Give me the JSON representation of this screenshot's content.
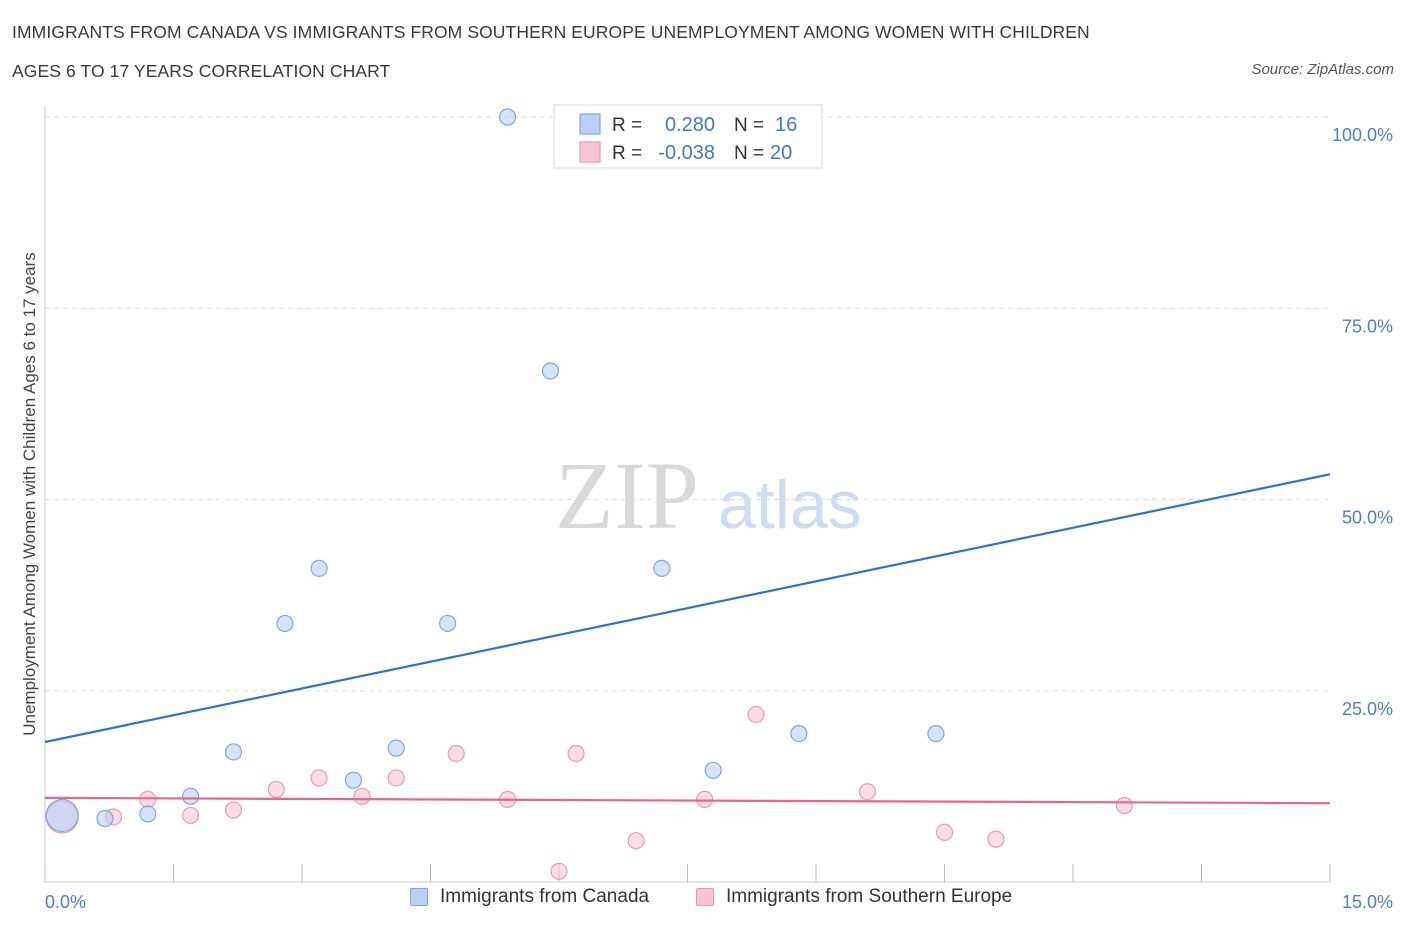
{
  "title_line1": "IMMIGRANTS FROM CANADA VS IMMIGRANTS FROM SOUTHERN EUROPE UNEMPLOYMENT AMONG WOMEN WITH CHILDREN",
  "title_line2": "AGES 6 TO 17 YEARS CORRELATION CHART",
  "source": "Source: ZipAtlas.com",
  "watermark": {
    "zip": "ZIP",
    "atlas": "atlas"
  },
  "colors": {
    "canada_fill": "#b8d0f5",
    "canada_stroke": "#7ea6e0",
    "canada_line": "#2f72d6",
    "europe_fill": "#f8c4d4",
    "europe_stroke": "#eb9ab5",
    "europe_line": "#e8638e",
    "tick_text": "#4a7fcf",
    "grid": "#dddddd"
  },
  "legend": {
    "r_label": "R =",
    "n_label": "N =",
    "canada": {
      "r": "0.280",
      "n": "16"
    },
    "europe": {
      "r": "-0.038",
      "n": "20"
    }
  },
  "bottom_legend": {
    "canada": "Immigrants from Canada",
    "europe": "Immigrants from Southern Europe"
  },
  "chart_data": {
    "type": "scatter",
    "xlabel": "",
    "ylabel": "Unemployment Among Women with Children Ages 6 to 17 years",
    "xlim": [
      0,
      15
    ],
    "ylim": [
      0,
      100
    ],
    "x_tick_labels": [
      "0.0%",
      "15.0%"
    ],
    "y_tick_labels": [
      "25.0%",
      "50.0%",
      "75.0%",
      "100.0%"
    ],
    "y_ticks": [
      25,
      50,
      75,
      100
    ],
    "grid": true,
    "legend_position": "top-center",
    "series": [
      {
        "name": "Immigrants from Canada",
        "points": [
          {
            "x": 0.2,
            "y": 8.7,
            "big": true
          },
          {
            "x": 0.7,
            "y": 8.3
          },
          {
            "x": 1.2,
            "y": 8.9
          },
          {
            "x": 1.7,
            "y": 11.2
          },
          {
            "x": 2.2,
            "y": 17.0
          },
          {
            "x": 2.8,
            "y": 33.8
          },
          {
            "x": 3.2,
            "y": 41.0
          },
          {
            "x": 3.6,
            "y": 13.3
          },
          {
            "x": 4.1,
            "y": 17.5
          },
          {
            "x": 4.7,
            "y": 33.8
          },
          {
            "x": 5.4,
            "y": 100.0
          },
          {
            "x": 5.9,
            "y": 66.8
          },
          {
            "x": 7.2,
            "y": 41.0
          },
          {
            "x": 7.8,
            "y": 14.6
          },
          {
            "x": 8.8,
            "y": 19.4
          },
          {
            "x": 10.4,
            "y": 19.4
          }
        ],
        "trend": {
          "x": [
            0,
            15
          ],
          "y": [
            18.3,
            53.3
          ]
        }
      },
      {
        "name": "Immigrants from Southern Europe",
        "points": [
          {
            "x": 0.2,
            "y": 8.5,
            "big": true
          },
          {
            "x": 0.8,
            "y": 8.5
          },
          {
            "x": 1.2,
            "y": 10.8
          },
          {
            "x": 1.7,
            "y": 8.7
          },
          {
            "x": 2.2,
            "y": 9.4
          },
          {
            "x": 2.7,
            "y": 12.1
          },
          {
            "x": 3.2,
            "y": 13.6
          },
          {
            "x": 3.7,
            "y": 11.2
          },
          {
            "x": 4.1,
            "y": 13.6
          },
          {
            "x": 4.8,
            "y": 16.8
          },
          {
            "x": 5.4,
            "y": 10.8
          },
          {
            "x": 6.0,
            "y": 1.4
          },
          {
            "x": 6.2,
            "y": 16.8
          },
          {
            "x": 6.9,
            "y": 5.4
          },
          {
            "x": 7.7,
            "y": 10.8
          },
          {
            "x": 8.3,
            "y": 21.9
          },
          {
            "x": 9.6,
            "y": 11.8
          },
          {
            "x": 10.5,
            "y": 6.5
          },
          {
            "x": 11.1,
            "y": 5.6
          },
          {
            "x": 12.6,
            "y": 10.0
          }
        ],
        "trend": {
          "x": [
            0,
            15
          ],
          "y": [
            11.0,
            10.3
          ]
        }
      }
    ]
  }
}
